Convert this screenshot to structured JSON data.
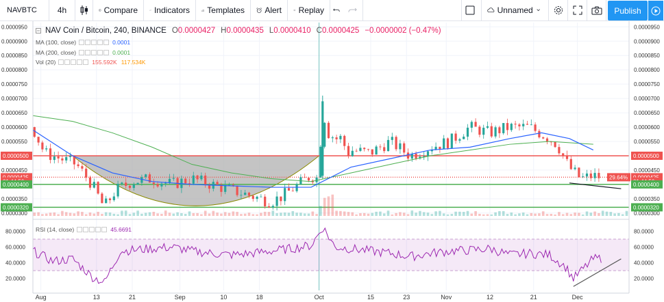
{
  "toolbar": {
    "symbol": "NAVBTC",
    "interval": "4h",
    "compare_label": "Compare",
    "indicators_label": "Indicators",
    "templates_label": "Templates",
    "alert_label": "Alert",
    "replay_label": "Replay",
    "layout_name": "Unnamed",
    "publish_label": "Publish"
  },
  "legend": {
    "title": "NAV Coin / Bitcoin, 240, BINANCE",
    "o_label": "O",
    "o_value": "0.0000427",
    "h_label": "H",
    "h_value": "0.0000435",
    "l_label": "L",
    "l_value": "0.0000410",
    "c_label": "C",
    "c_value": "0.0000425",
    "change": "−0.0000002 (−0.47%)",
    "ma100_label": "MA (100, close)",
    "ma100_value": "0.0001",
    "ma200_label": "MA (200, close)",
    "ma200_value": "0.0001",
    "vol_label": "Vol (20)",
    "vol_value1": "155.592K",
    "vol_value2": "117.534K",
    "rsi_label": "RSI (14, close)",
    "rsi_value": "45.6691"
  },
  "colors": {
    "up": "#26a69a",
    "down": "#ef5350",
    "ma100": "#2962ff",
    "ma200": "#4caf50",
    "rsi": "#9c27b0",
    "resistance": "#ef5350",
    "support": "#4caf50",
    "cup_fill": "#b0b0b0",
    "accent": "#2196f3"
  },
  "chart_data": [
    {
      "type": "candlestick",
      "x_ticks": [
        "Aug",
        "13",
        "21",
        "Sep",
        "10",
        "18",
        "Oct",
        "15",
        "23",
        "Nov",
        "12",
        "21",
        "Dec"
      ],
      "y_ticks": [
        "0.0000950",
        "0.0000900",
        "0.0000850",
        "0.0000800",
        "0.0000750",
        "0.0000700",
        "0.0000650",
        "0.0000600",
        "0.0000550",
        "0.0000500",
        "0.0000450",
        "0.0000400",
        "0.0000350",
        "0.0000300"
      ],
      "ylim": [
        2.9e-05,
        9.65e-05
      ],
      "price_path": [
        [
          0,
          6e-05
        ],
        [
          3,
          5.1e-05
        ],
        [
          7,
          4.9e-05
        ],
        [
          11,
          4.7e-05
        ],
        [
          15,
          4e-05
        ],
        [
          18,
          3.2e-05
        ],
        [
          21,
          3.8e-05
        ],
        [
          25,
          4.1e-05
        ],
        [
          30,
          4.2e-05
        ],
        [
          35,
          4e-05
        ],
        [
          40,
          4.2e-05
        ],
        [
          45,
          4e-05
        ],
        [
          50,
          3.8e-05
        ],
        [
          55,
          3.6e-05
        ],
        [
          60,
          3.4e-05
        ],
        [
          63,
          3.6e-05
        ],
        [
          66,
          3.9e-05
        ],
        [
          70,
          4.3e-05
        ],
        [
          72,
          4.2e-05
        ],
        [
          73,
          6.8e-05
        ],
        [
          75,
          5.8e-05
        ],
        [
          80,
          5.2e-05
        ],
        [
          85,
          5.1e-05
        ],
        [
          90,
          5.5e-05
        ],
        [
          95,
          5e-05
        ],
        [
          100,
          5.3e-05
        ],
        [
          105,
          5.5e-05
        ],
        [
          110,
          6e-05
        ],
        [
          115,
          5.8e-05
        ],
        [
          120,
          6e-05
        ],
        [
          125,
          6e-05
        ],
        [
          130,
          5.6e-05
        ],
        [
          132,
          5.4e-05
        ],
        [
          135,
          4.6e-05
        ],
        [
          138,
          4.2e-05
        ],
        [
          141,
          4.3e-05
        ],
        [
          143,
          4.25e-05
        ]
      ],
      "ma100_path": [
        [
          0,
          5.9e-05
        ],
        [
          10,
          5e-05
        ],
        [
          20,
          4.4e-05
        ],
        [
          30,
          4.1e-05
        ],
        [
          40,
          4e-05
        ],
        [
          50,
          3.95e-05
        ],
        [
          60,
          3.9e-05
        ],
        [
          70,
          3.9e-05
        ],
        [
          80,
          4.6e-05
        ],
        [
          90,
          4.9e-05
        ],
        [
          100,
          5.2e-05
        ],
        [
          110,
          5.3e-05
        ],
        [
          120,
          5.6e-05
        ],
        [
          128,
          5.8e-05
        ],
        [
          135,
          5.6e-05
        ],
        [
          141,
          5.2e-05
        ]
      ],
      "ma200_path": [
        [
          0,
          6.4e-05
        ],
        [
          10,
          6.2e-05
        ],
        [
          20,
          5.8e-05
        ],
        [
          30,
          5.3e-05
        ],
        [
          40,
          4.7e-05
        ],
        [
          50,
          4.4e-05
        ],
        [
          60,
          4.2e-05
        ],
        [
          70,
          4.1e-05
        ],
        [
          80,
          4.4e-05
        ],
        [
          90,
          4.7e-05
        ],
        [
          100,
          5e-05
        ],
        [
          110,
          5.2e-05
        ],
        [
          120,
          5.4e-05
        ],
        [
          130,
          5.5e-05
        ],
        [
          141,
          5.4e-05
        ]
      ],
      "cup_pattern": {
        "left_x": 10,
        "right_x": 72,
        "rim_price": 5e-05,
        "bottom_price": 3.25e-05
      },
      "horizontal_lines": [
        {
          "price": 5e-05,
          "color": "resistance"
        },
        {
          "price": 4.25e-05,
          "color": "resistance",
          "dotted": true
        },
        {
          "price": 4e-05,
          "color": "support"
        },
        {
          "price": 3.2e-05,
          "color": "support"
        }
      ],
      "price_labels": [
        {
          "text": "0.0000500",
          "price": 5e-05,
          "color": "resistance"
        },
        {
          "text": "0.0000425",
          "price": 4.25e-05,
          "color": "resistance"
        },
        {
          "text": "01:44:56",
          "price": 4.1e-05,
          "color": "resistance"
        },
        {
          "text": "0.0000400",
          "price": 4e-05,
          "color": "support"
        },
        {
          "text": "0.0000320",
          "price": 3.2e-05,
          "color": "support"
        }
      ],
      "right_labels": [
        {
          "text": "0.0000500",
          "price": 5e-05,
          "color": "resistance"
        },
        {
          "text": "29.64%",
          "price": 4.25e-05,
          "color": "resistance"
        },
        {
          "text": "0.0000425",
          "price": 4.25e-05,
          "color": "resistance"
        },
        {
          "text": "01:44:56",
          "price": 4.1e-05,
          "color": "resistance"
        },
        {
          "text": "0.0000400",
          "price": 4e-05,
          "color": "support"
        },
        {
          "text": "0.0000320",
          "price": 3.2e-05,
          "color": "support"
        }
      ]
    },
    {
      "type": "line",
      "name": "RSI (14, close)",
      "y_ticks": [
        "80.0000",
        "60.0000",
        "40.0000",
        "20.0000"
      ],
      "ylim": [
        5,
        90
      ],
      "band": [
        30,
        70
      ],
      "path": [
        [
          0,
          55
        ],
        [
          5,
          42
        ],
        [
          10,
          45
        ],
        [
          15,
          22
        ],
        [
          18,
          15
        ],
        [
          22,
          55
        ],
        [
          30,
          58
        ],
        [
          35,
          60
        ],
        [
          40,
          55
        ],
        [
          45,
          52
        ],
        [
          50,
          50
        ],
        [
          55,
          52
        ],
        [
          60,
          55
        ],
        [
          65,
          58
        ],
        [
          70,
          62
        ],
        [
          73,
          85
        ],
        [
          76,
          60
        ],
        [
          80,
          58
        ],
        [
          85,
          55
        ],
        [
          90,
          52
        ],
        [
          95,
          48
        ],
        [
          100,
          52
        ],
        [
          105,
          55
        ],
        [
          110,
          56
        ],
        [
          115,
          58
        ],
        [
          120,
          50
        ],
        [
          125,
          52
        ],
        [
          130,
          50
        ],
        [
          134,
          35
        ],
        [
          136,
          20
        ],
        [
          138,
          30
        ],
        [
          141,
          45
        ],
        [
          143,
          45.67
        ]
      ],
      "trendline": [
        [
          136,
          10
        ],
        [
          148,
          45
        ]
      ]
    }
  ]
}
